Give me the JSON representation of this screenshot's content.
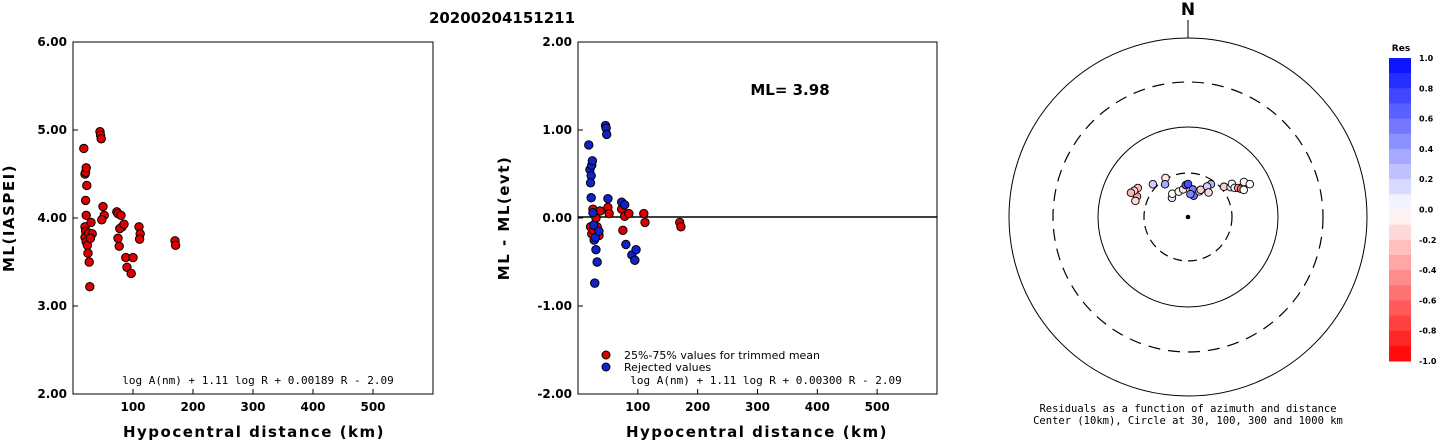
{
  "figure_title": "20200204151211",
  "chart_data": [
    {
      "type": "scatter",
      "panel": "left",
      "title": "",
      "xlabel": "Hypocentral distance (km)",
      "ylabel": "ML(IASPEI)",
      "xlim": [
        0,
        600
      ],
      "ylim": [
        2.0,
        6.0
      ],
      "xticks": [
        "100",
        "200",
        "300",
        "400",
        "500"
      ],
      "yticks": [
        "2.00",
        "3.00",
        "4.00",
        "5.00",
        "6.00"
      ],
      "formula": "log A(nm) + 1.11 log R + 0.00189 R - 2.09",
      "point_color": "#dd0000",
      "points": [
        [
          18,
          4.79
        ],
        [
          20,
          4.5
        ],
        [
          21,
          4.52
        ],
        [
          22,
          4.57
        ],
        [
          23,
          4.37
        ],
        [
          21,
          4.2
        ],
        [
          22,
          4.03
        ],
        [
          20,
          3.9
        ],
        [
          21,
          3.85
        ],
        [
          20,
          3.78
        ],
        [
          22,
          3.73
        ],
        [
          24,
          3.69
        ],
        [
          26,
          3.83
        ],
        [
          25,
          3.6
        ],
        [
          27,
          3.5
        ],
        [
          30,
          3.95
        ],
        [
          32,
          3.82
        ],
        [
          29,
          3.77
        ],
        [
          28,
          3.22
        ],
        [
          45,
          4.98
        ],
        [
          46,
          4.94
        ],
        [
          47,
          4.9
        ],
        [
          50,
          4.13
        ],
        [
          52,
          4.03
        ],
        [
          48,
          3.98
        ],
        [
          73,
          4.07
        ],
        [
          75,
          4.05
        ],
        [
          80,
          4.03
        ],
        [
          82,
          3.9
        ],
        [
          78,
          3.88
        ],
        [
          85,
          3.93
        ],
        [
          75,
          3.77
        ],
        [
          77,
          3.68
        ],
        [
          88,
          3.55
        ],
        [
          90,
          3.44
        ],
        [
          97,
          3.37
        ],
        [
          100,
          3.55
        ],
        [
          110,
          3.9
        ],
        [
          112,
          3.82
        ],
        [
          111,
          3.76
        ],
        [
          170,
          3.74
        ],
        [
          171,
          3.69
        ]
      ]
    },
    {
      "type": "scatter",
      "panel": "middle",
      "title": "",
      "xlabel": "Hypocentral distance (km)",
      "ylabel": "ML - ML(evt)",
      "xlim": [
        0,
        600
      ],
      "ylim": [
        -2.0,
        2.0
      ],
      "xticks": [
        "100",
        "200",
        "300",
        "400",
        "500"
      ],
      "yticks": [
        "-2.00",
        "-1.00",
        "0.00",
        "1.00",
        "2.00"
      ],
      "ml_text": "ML= 3.98",
      "formula": "log A(nm) + 1.11 log R + 0.00300 R - 2.09",
      "legend": [
        {
          "label": "25%-75% values for trimmed mean",
          "color": "#dd0000"
        },
        {
          "label": "Rejected values",
          "color": "#1122cc"
        }
      ],
      "series": [
        {
          "name": "25%-75% values for trimmed mean",
          "color": "#dd0000",
          "points": [
            [
              21,
              -0.1
            ],
            [
              23,
              -0.18
            ],
            [
              25,
              0.1
            ],
            [
              26,
              -0.14
            ],
            [
              28,
              -0.24
            ],
            [
              30,
              0.0
            ],
            [
              32,
              -0.1
            ],
            [
              35,
              -0.2
            ],
            [
              37,
              0.08
            ],
            [
              50,
              0.12
            ],
            [
              52,
              0.05
            ],
            [
              73,
              0.1
            ],
            [
              75,
              -0.14
            ],
            [
              78,
              0.02
            ],
            [
              85,
              0.05
            ],
            [
              110,
              0.05
            ],
            [
              112,
              -0.05
            ],
            [
              170,
              -0.05
            ],
            [
              172,
              -0.1
            ]
          ]
        },
        {
          "name": "Rejected values",
          "color": "#1122cc",
          "points": [
            [
              18,
              0.83
            ],
            [
              20,
              0.55
            ],
            [
              22,
              0.48
            ],
            [
              23,
              0.6
            ],
            [
              24,
              0.65
            ],
            [
              21,
              0.4
            ],
            [
              22,
              0.23
            ],
            [
              25,
              0.06
            ],
            [
              26,
              -0.08
            ],
            [
              27,
              -0.25
            ],
            [
              29,
              -0.22
            ],
            [
              30,
              -0.36
            ],
            [
              32,
              -0.5
            ],
            [
              28,
              -0.74
            ],
            [
              35,
              -0.15
            ],
            [
              46,
              1.05
            ],
            [
              47,
              1.02
            ],
            [
              48,
              0.95
            ],
            [
              50,
              0.22
            ],
            [
              73,
              0.18
            ],
            [
              78,
              0.15
            ],
            [
              80,
              -0.3
            ],
            [
              90,
              -0.42
            ],
            [
              95,
              -0.48
            ],
            [
              97,
              -0.36
            ]
          ]
        }
      ]
    },
    {
      "type": "polar",
      "panel": "right",
      "north_label": "N",
      "caption_line1": "Residuals as a function of azimuth and distance",
      "caption_line2": "Center (10km), Circle at 30, 100, 300 and 1000 km",
      "colorbar_title": "Res",
      "colorbar_ticks": [
        "1.0",
        "0.8",
        "0.6",
        "0.4",
        "0.2",
        "0.0",
        "-0.2",
        "-0.4",
        "-0.6",
        "-0.8",
        "-1.0"
      ],
      "points_az_dist_res": [
        [
          330,
          45,
          -0.1
        ],
        [
          325,
          40,
          0.35
        ],
        [
          313,
          48,
          0.2
        ],
        [
          300,
          58,
          -0.25
        ],
        [
          292,
          55,
          -0.35
        ],
        [
          296,
          60,
          -0.2
        ],
        [
          293,
          62,
          -0.3
        ],
        [
          287,
          55,
          -0.15
        ],
        [
          320,
          25,
          0.1
        ],
        [
          326,
          28,
          0.0
        ],
        [
          340,
          27,
          -0.05
        ],
        [
          350,
          28,
          -0.1
        ],
        [
          356,
          32,
          0.7
        ],
        [
          0,
          33,
          0.72
        ],
        [
          10,
          28,
          0.55
        ],
        [
          15,
          22,
          0.6
        ],
        [
          6,
          23,
          0.5
        ],
        [
          24,
          28,
          0.1
        ],
        [
          25,
          30,
          -0.2
        ],
        [
          35,
          40,
          0.3
        ],
        [
          32,
          36,
          0.2
        ],
        [
          40,
          32,
          -0.15
        ],
        [
          50,
          47,
          -0.2
        ],
        [
          55,
          52,
          0.1
        ],
        [
          53,
          55,
          0.0
        ],
        [
          58,
          55,
          -0.05
        ],
        [
          60,
          58,
          -0.35
        ],
        [
          62,
          60,
          -0.6
        ],
        [
          64,
          62,
          0.0
        ],
        [
          58,
          66,
          -0.05
        ],
        [
          62,
          70,
          0.0
        ]
      ]
    }
  ]
}
